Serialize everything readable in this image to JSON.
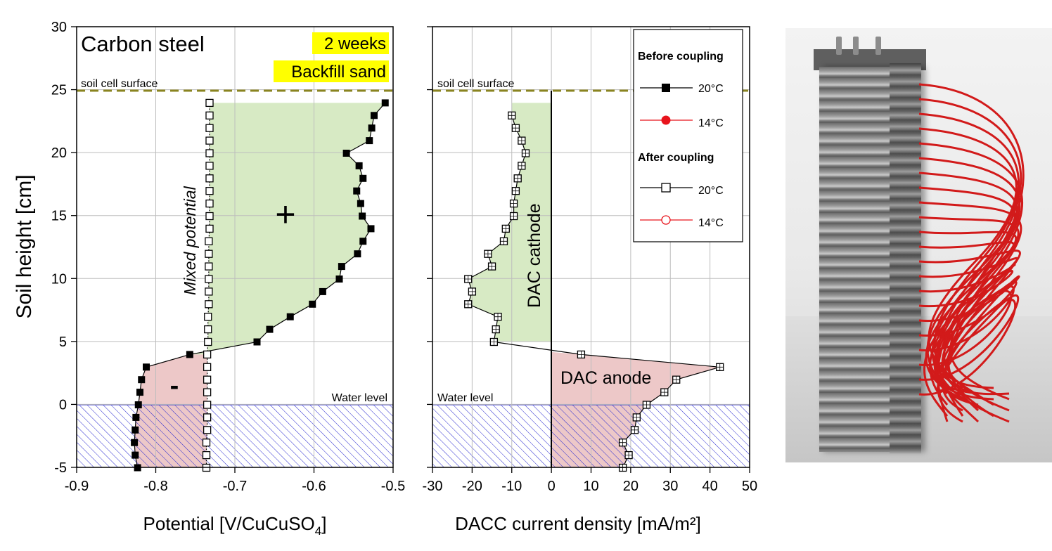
{
  "chart_data": [
    {
      "type": "scatter",
      "title": "Carbon steel",
      "tags": [
        "2 weeks",
        "Backfill sand"
      ],
      "xlabel": "Potential [V/CuCuSO",
      "xlabel_sub": "4",
      "xlabel_end": "]",
      "ylabel": "Soil height [cm]",
      "xlim": [
        -0.9,
        -0.5
      ],
      "ylim": [
        -5,
        30
      ],
      "xticks": [
        "-0.9",
        "-0.8",
        "-0.7",
        "-0.6",
        "-0.5"
      ],
      "yticks": [
        "-5",
        "0",
        "5",
        "10",
        "15",
        "20",
        "25",
        "30"
      ],
      "grid": true,
      "annotations": {
        "surface": "soil cell surface",
        "water": "Water level",
        "mixed": "Mixed potential",
        "plus": "+",
        "minus": "-"
      },
      "surface_level": 25,
      "water_level": 0,
      "series": [
        {
          "name": "Before coupling 20°C",
          "marker": "filled-square",
          "color": "#000000",
          "y": [
            24,
            23,
            22,
            21,
            20,
            19,
            18,
            17,
            16,
            15,
            14,
            13,
            12,
            11,
            10,
            9,
            8,
            7,
            6,
            5,
            4,
            3,
            2,
            1,
            0,
            -1,
            -2,
            -3,
            -4,
            -5
          ],
          "x": [
            -0.51,
            -0.524,
            -0.527,
            -0.53,
            -0.559,
            -0.543,
            -0.538,
            -0.546,
            -0.541,
            -0.539,
            -0.528,
            -0.538,
            -0.545,
            -0.565,
            -0.568,
            -0.589,
            -0.602,
            -0.63,
            -0.656,
            -0.672,
            -0.757,
            -0.812,
            -0.818,
            -0.82,
            -0.822,
            -0.825,
            -0.826,
            -0.827,
            -0.826,
            -0.823
          ]
        },
        {
          "name": "After coupling 20°C",
          "marker": "open-square",
          "color": "#000000",
          "y": [
            24,
            23,
            22,
            21,
            20,
            19,
            18,
            17,
            16,
            15,
            14,
            13,
            12,
            11,
            10,
            9,
            8,
            7,
            6,
            5,
            4,
            3,
            2,
            1,
            0,
            -1,
            -2,
            -3,
            -4,
            -5
          ],
          "x": [
            -0.732,
            -0.732,
            -0.732,
            -0.732,
            -0.732,
            -0.732,
            -0.732,
            -0.732,
            -0.732,
            -0.732,
            -0.732,
            -0.733,
            -0.733,
            -0.733,
            -0.733,
            -0.733,
            -0.733,
            -0.734,
            -0.734,
            -0.734,
            -0.735,
            -0.735,
            -0.735,
            -0.735,
            -0.735,
            -0.735,
            -0.735,
            -0.736,
            -0.736,
            -0.736
          ]
        }
      ]
    },
    {
      "type": "scatter",
      "xlabel": "DACC current density [mA/m²]",
      "xlim": [
        -30,
        50
      ],
      "ylim": [
        -5,
        30
      ],
      "xticks": [
        "-30",
        "-20",
        "-10",
        "0",
        "10",
        "20",
        "30",
        "40",
        "50"
      ],
      "grid": true,
      "annotations": {
        "surface": "soil cell surface",
        "water": "Water level",
        "cathode": "DAC cathode",
        "anode": "DAC anode"
      },
      "series": [
        {
          "name": "After coupling 20°C",
          "marker": "crossed-square",
          "color": "#000000",
          "y": [
            23,
            22,
            21,
            20,
            19,
            18,
            17,
            16,
            15,
            14,
            13,
            12,
            11,
            10,
            9,
            8,
            7,
            6,
            5,
            4,
            3,
            2,
            1,
            0,
            -1,
            -2,
            -3,
            -4,
            -5
          ],
          "x": [
            -10,
            -9,
            -7.5,
            -6.5,
            -7.5,
            -8.5,
            -9,
            -9.5,
            -9.5,
            -11.5,
            -12,
            -16,
            -15,
            -21,
            -20,
            -21,
            -13.5,
            -14,
            -14.5,
            7.5,
            42.5,
            31.5,
            28.5,
            24,
            21.5,
            21,
            18,
            19.5,
            18
          ]
        }
      ],
      "legend": {
        "before_heading": "Before coupling",
        "after_heading": "After coupling",
        "entries": [
          {
            "label": "20°C",
            "marker": "filled",
            "color": "#000000"
          },
          {
            "label": "14°C",
            "marker": "filled-circle",
            "color": "#e8141c"
          },
          {
            "label": "20°C",
            "marker": "open",
            "color": "#000000"
          },
          {
            "label": "14°C",
            "marker": "open-circle",
            "color": "#e8141c"
          }
        ]
      }
    }
  ],
  "colors": {
    "green_fill": "#d7eac4",
    "red_fill": "#edc8c8",
    "hatch": "#2a2ad0",
    "dashed": "#8a8420",
    "highlight": "#ffff00"
  }
}
